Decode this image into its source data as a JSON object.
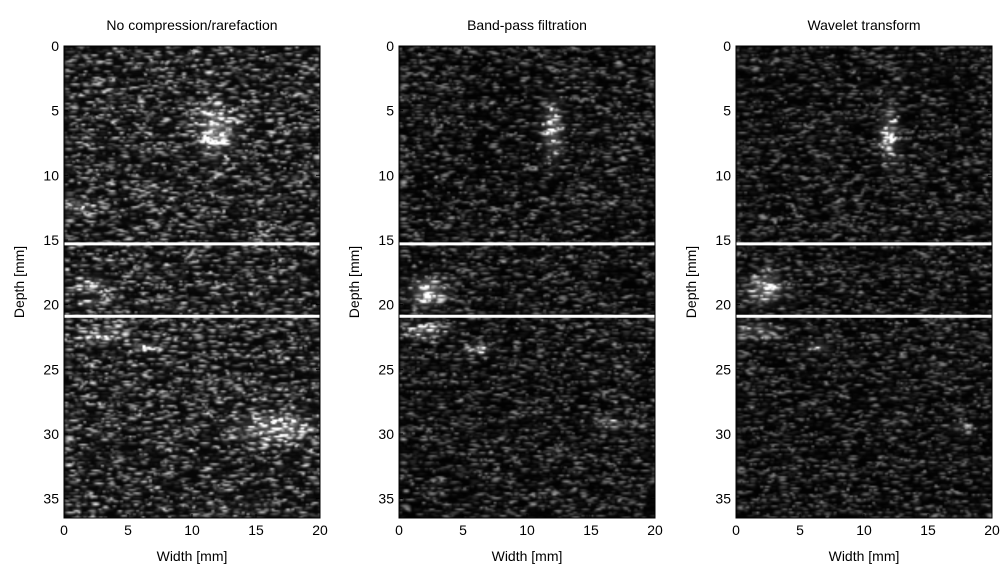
{
  "chart_data": [
    {
      "type": "heatmap",
      "title": "No compression/rarefaction",
      "xlabel": "Width [mm]",
      "ylabel": "Depth [mm]",
      "xlim": [
        0,
        20
      ],
      "ylim": [
        0,
        36.5
      ],
      "xticks": [
        0,
        5,
        10,
        15,
        20
      ],
      "yticks": [
        0,
        5,
        10,
        15,
        20,
        25,
        30,
        35
      ],
      "boundaries": [
        15.3,
        20.9
      ],
      "colormap": "gray",
      "background": 0.07,
      "speckle": 0.28,
      "seed": 11,
      "hotspots": [
        {
          "x": 11.8,
          "y": 6.5,
          "rx": 1.2,
          "ry": 1.6,
          "v": 1.0
        },
        {
          "x": 2.3,
          "y": 18.5,
          "rx": 1.0,
          "ry": 0.6,
          "v": 0.65
        },
        {
          "x": 2.0,
          "y": 19.9,
          "rx": 0.9,
          "ry": 0.35,
          "v": 0.55
        },
        {
          "x": 6.2,
          "y": 23.3,
          "rx": 0.8,
          "ry": 0.3,
          "v": 0.7
        },
        {
          "x": 16.5,
          "y": 29.5,
          "rx": 2.5,
          "ry": 1.0,
          "v": 0.8
        },
        {
          "x": 1.2,
          "y": 12.4,
          "rx": 0.9,
          "ry": 0.5,
          "v": 0.6
        },
        {
          "x": 3.0,
          "y": 22.3,
          "rx": 1.8,
          "ry": 0.6,
          "v": 0.35
        }
      ]
    },
    {
      "type": "heatmap",
      "title": "Band-pass filtration",
      "xlabel": "Width [mm]",
      "ylabel": "Depth [mm]",
      "xlim": [
        0,
        20
      ],
      "ylim": [
        0,
        36.5
      ],
      "xticks": [
        0,
        5,
        10,
        15,
        20
      ],
      "yticks": [
        0,
        5,
        10,
        15,
        20,
        25,
        30,
        35
      ],
      "boundaries": [
        15.3,
        20.9
      ],
      "colormap": "gray",
      "background": 0.02,
      "speckle": 0.22,
      "seed": 23,
      "hotspots": [
        {
          "x": 12.0,
          "y": 6.5,
          "rx": 0.7,
          "ry": 2.0,
          "v": 0.8
        },
        {
          "x": 2.3,
          "y": 19.0,
          "rx": 1.2,
          "ry": 1.0,
          "v": 1.0
        },
        {
          "x": 6.3,
          "y": 23.5,
          "rx": 0.8,
          "ry": 0.35,
          "v": 0.75
        },
        {
          "x": 16.5,
          "y": 29.2,
          "rx": 1.2,
          "ry": 0.4,
          "v": 0.45
        },
        {
          "x": 2.0,
          "y": 22.0,
          "rx": 1.6,
          "ry": 0.6,
          "v": 0.55
        }
      ]
    },
    {
      "type": "heatmap",
      "title": "Wavelet transform",
      "xlabel": "Width [mm]",
      "ylabel": "Depth [mm]",
      "xlim": [
        0,
        20
      ],
      "ylim": [
        0,
        36.5
      ],
      "xticks": [
        0,
        5,
        10,
        15,
        20
      ],
      "yticks": [
        0,
        5,
        10,
        15,
        20,
        25,
        30,
        35
      ],
      "boundaries": [
        15.3,
        20.9
      ],
      "colormap": "gray",
      "background": 0.02,
      "speckle": 0.2,
      "seed": 37,
      "hotspots": [
        {
          "x": 12.0,
          "y": 6.8,
          "rx": 0.7,
          "ry": 2.0,
          "v": 0.7
        },
        {
          "x": 2.3,
          "y": 18.8,
          "rx": 1.2,
          "ry": 1.0,
          "v": 0.95
        },
        {
          "x": 6.4,
          "y": 23.3,
          "rx": 0.8,
          "ry": 0.3,
          "v": 0.7
        },
        {
          "x": 17.5,
          "y": 29.5,
          "rx": 1.0,
          "ry": 0.4,
          "v": 0.35
        },
        {
          "x": 1.8,
          "y": 22.0,
          "rx": 1.5,
          "ry": 0.6,
          "v": 0.5
        }
      ]
    }
  ]
}
